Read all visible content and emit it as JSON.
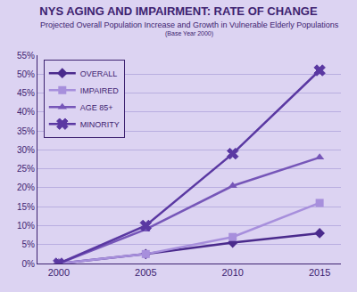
{
  "chart_data": {
    "type": "line",
    "title": "NYS AGING AND IMPAIRMENT: RATE OF CHANGE",
    "subtitle": "Projected Overall Population Increase and Growth in Vulnerable Elderly Populations",
    "annotations": [
      "(Base Year 2000)"
    ],
    "categories": [
      "2000",
      "2005",
      "2010",
      "2015"
    ],
    "series": [
      {
        "name": "OVERALL",
        "color": "#4a2a8c",
        "marker": "diamond",
        "values": [
          0,
          2.5,
          5.5,
          8
        ]
      },
      {
        "name": "IMPAIRED",
        "color": "#a78fdc",
        "marker": "square",
        "values": [
          0,
          2.5,
          7,
          16
        ]
      },
      {
        "name": "AGE 85+",
        "color": "#7656b8",
        "marker": "triangle-up",
        "values": [
          0,
          9,
          20.5,
          28
        ]
      },
      {
        "name": "MINORITY",
        "color": "#5a38a2",
        "marker": "x",
        "values": [
          0,
          10,
          29,
          51
        ]
      }
    ],
    "ylim": [
      0,
      55
    ],
    "yticks": [
      {
        "value": 0,
        "label": "0%"
      },
      {
        "value": 5,
        "label": "5%"
      },
      {
        "value": 10,
        "label": "10%"
      },
      {
        "value": 15,
        "label": "15%"
      },
      {
        "value": 20,
        "label": "20%"
      },
      {
        "value": 25,
        "label": "25%"
      },
      {
        "value": 30,
        "label": "30%"
      },
      {
        "value": 35,
        "label": "35%"
      },
      {
        "value": 40,
        "label": "40%"
      },
      {
        "value": 45,
        "label": "45%"
      },
      {
        "value": 50,
        "label": "50%"
      },
      {
        "value": 55,
        "label": "55%"
      }
    ],
    "grid": true,
    "legend": "upper left"
  }
}
